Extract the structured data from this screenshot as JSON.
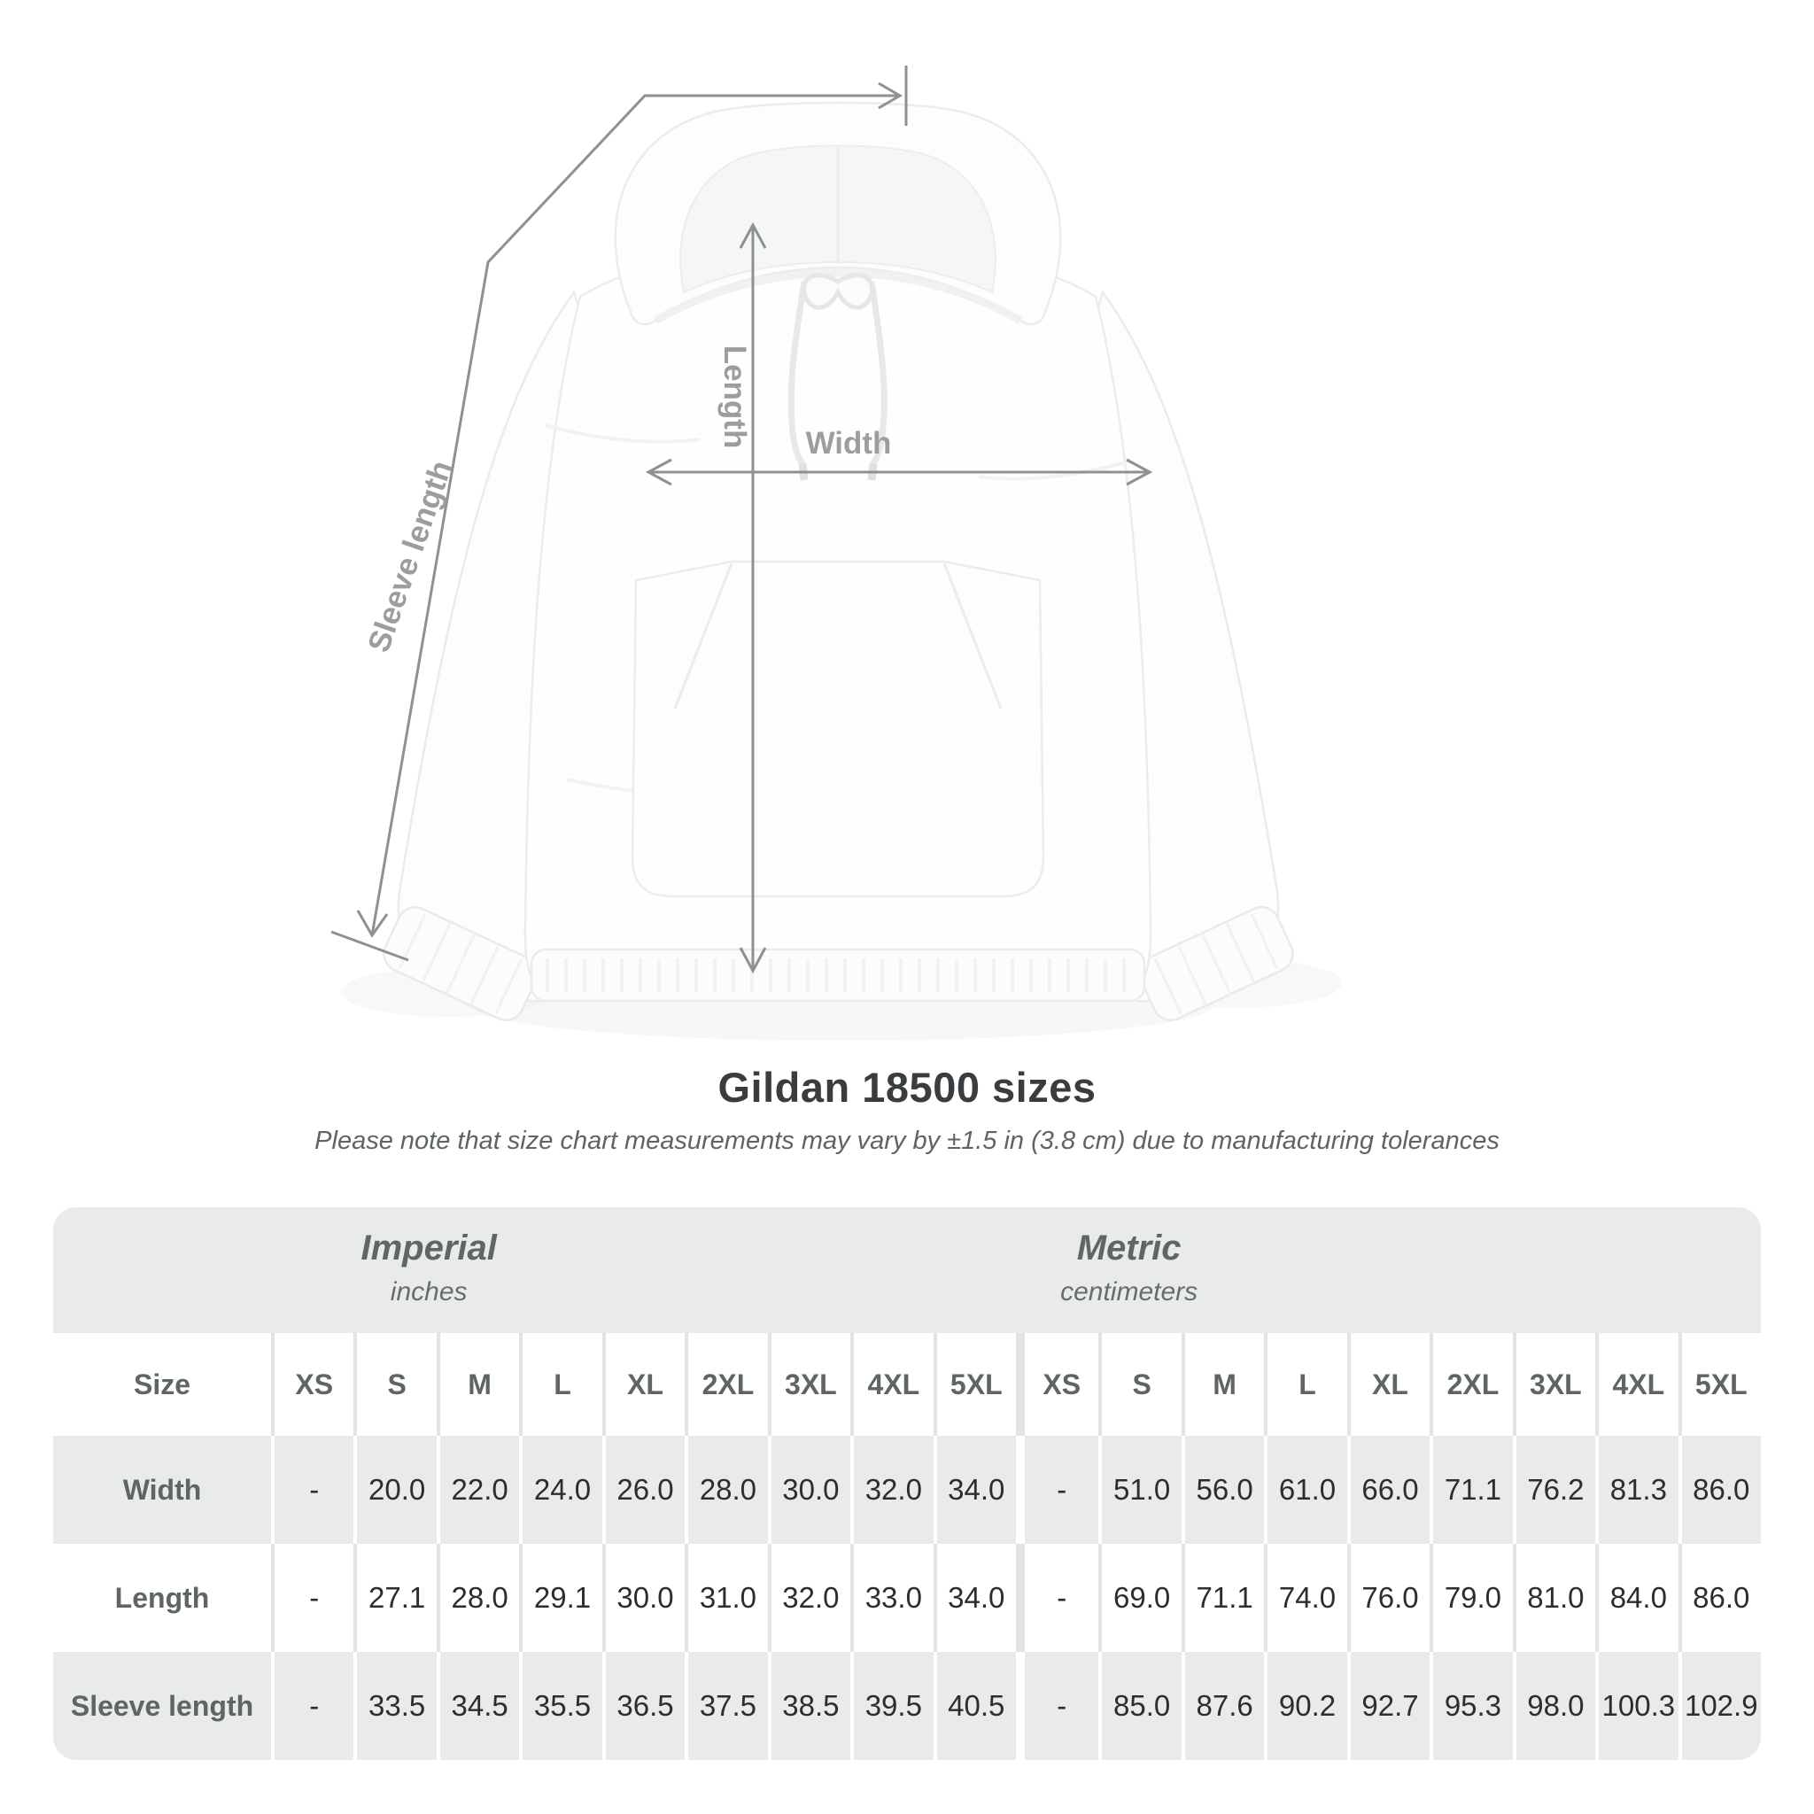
{
  "diagram": {
    "length_label": "Length",
    "width_label": "Width",
    "sleeve_label": "Sleeve length"
  },
  "title": "Gildan 18500 sizes",
  "subtitle": "Please note that size chart measurements may vary by ±1.5 in (3.8 cm) due to manufacturing tolerances",
  "table": {
    "imperial_title": "Imperial",
    "imperial_unit": "inches",
    "metric_title": "Metric",
    "metric_unit": "centimeters",
    "size_header": "Size",
    "sizes": [
      "XS",
      "S",
      "M",
      "L",
      "XL",
      "2XL",
      "3XL",
      "4XL",
      "5XL"
    ],
    "rows": [
      {
        "label": "Width",
        "imperial": [
          "-",
          "20.0",
          "22.0",
          "24.0",
          "26.0",
          "28.0",
          "30.0",
          "32.0",
          "34.0"
        ],
        "metric": [
          "-",
          "51.0",
          "56.0",
          "61.0",
          "66.0",
          "71.1",
          "76.2",
          "81.3",
          "86.0"
        ]
      },
      {
        "label": "Length",
        "imperial": [
          "-",
          "27.1",
          "28.0",
          "29.1",
          "30.0",
          "31.0",
          "32.0",
          "33.0",
          "34.0"
        ],
        "metric": [
          "-",
          "69.0",
          "71.1",
          "74.0",
          "76.0",
          "79.0",
          "81.0",
          "84.0",
          "86.0"
        ]
      },
      {
        "label": "Sleeve length",
        "imperial": [
          "-",
          "33.5",
          "34.5",
          "35.5",
          "36.5",
          "37.5",
          "38.5",
          "39.5",
          "40.5"
        ],
        "metric": [
          "-",
          "85.0",
          "87.6",
          "90.2",
          "92.7",
          "95.3",
          "98.0",
          "100.3",
          "102.9"
        ]
      }
    ]
  },
  "chart_data": {
    "type": "table",
    "title": "Gildan 18500 sizes",
    "note": "Please note that size chart measurements may vary by ±1.5 in (3.8 cm) due to manufacturing tolerances",
    "unit_groups": [
      {
        "name": "Imperial",
        "unit": "inches"
      },
      {
        "name": "Metric",
        "unit": "centimeters"
      }
    ],
    "sizes": [
      "XS",
      "S",
      "M",
      "L",
      "XL",
      "2XL",
      "3XL",
      "4XL",
      "5XL"
    ],
    "measurements": [
      {
        "measure": "Width",
        "imperial_in": [
          null,
          20.0,
          22.0,
          24.0,
          26.0,
          28.0,
          30.0,
          32.0,
          34.0
        ],
        "metric_cm": [
          null,
          51.0,
          56.0,
          61.0,
          66.0,
          71.1,
          76.2,
          81.3,
          86.0
        ]
      },
      {
        "measure": "Length",
        "imperial_in": [
          null,
          27.1,
          28.0,
          29.1,
          30.0,
          31.0,
          32.0,
          33.0,
          34.0
        ],
        "metric_cm": [
          null,
          69.0,
          71.1,
          74.0,
          76.0,
          79.0,
          81.0,
          84.0,
          86.0
        ]
      },
      {
        "measure": "Sleeve length",
        "imperial_in": [
          null,
          33.5,
          34.5,
          35.5,
          36.5,
          37.5,
          38.5,
          39.5,
          40.5
        ],
        "metric_cm": [
          null,
          85.0,
          87.6,
          90.2,
          92.7,
          95.3,
          98.0,
          100.3,
          102.9
        ]
      }
    ],
    "annotated_dimensions": [
      "Length",
      "Width",
      "Sleeve length"
    ]
  },
  "colors": {
    "background": "#ffffff",
    "table_band": "#e9eaea",
    "value_text": "#2c2e2e",
    "label_text": "#5d6565",
    "title_text": "#3a3d3f",
    "annotation_label": "#9b9ea0",
    "arrow_line": "#8d9191"
  }
}
